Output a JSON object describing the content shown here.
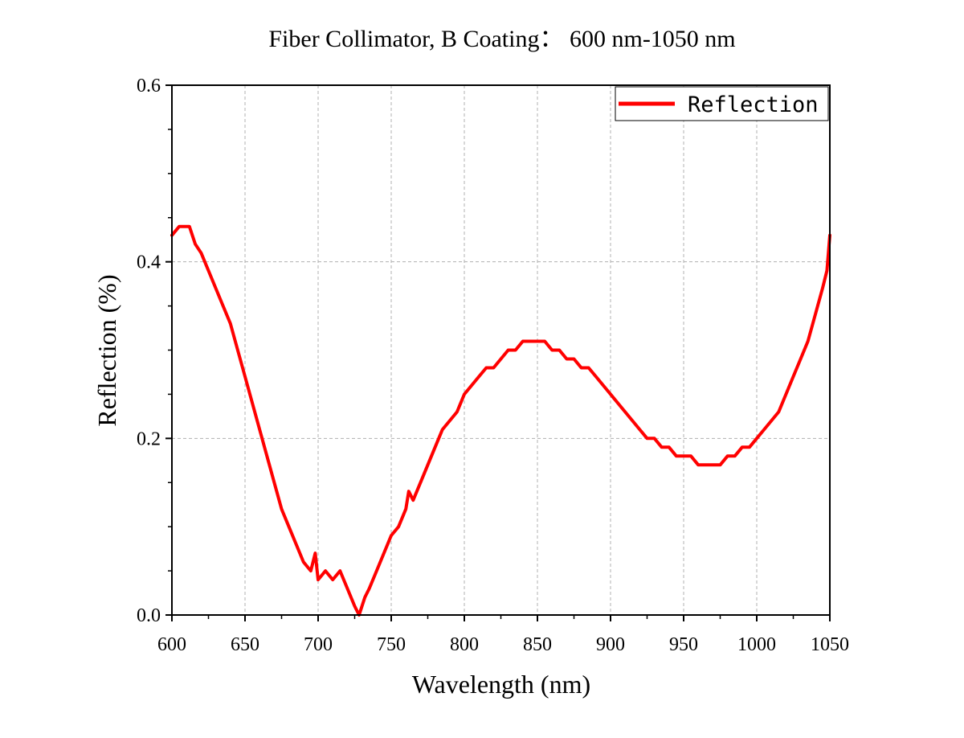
{
  "chart_data": {
    "type": "line",
    "title": "Fiber Collimator, B Coating： 600 nm-1050 nm",
    "xlabel": "Wavelength (nm)",
    "ylabel": "Reflection (%)",
    "xlim": [
      600,
      1050
    ],
    "ylim": [
      0,
      0.6
    ],
    "xticks": [
      "600",
      "650",
      "700",
      "750",
      "800",
      "850",
      "900",
      "950",
      "1000",
      "1050"
    ],
    "yticks": [
      "0.0",
      "0.2",
      "0.4",
      "0.6"
    ],
    "grid": true,
    "legend_position": "top-right",
    "series": [
      {
        "name": "Reflection",
        "color": "#ff0000",
        "x": [
          600,
          605,
          612,
          616,
          620,
          625,
          630,
          635,
          640,
          645,
          650,
          655,
          660,
          665,
          670,
          675,
          680,
          685,
          690,
          695,
          698,
          700,
          705,
          710,
          715,
          720,
          725,
          728,
          732,
          735,
          740,
          745,
          750,
          755,
          760,
          762,
          765,
          770,
          775,
          780,
          785,
          790,
          795,
          800,
          805,
          810,
          815,
          820,
          825,
          830,
          835,
          840,
          845,
          850,
          855,
          860,
          865,
          870,
          875,
          880,
          885,
          890,
          895,
          900,
          905,
          910,
          915,
          920,
          925,
          930,
          935,
          940,
          945,
          950,
          955,
          960,
          965,
          970,
          975,
          980,
          985,
          990,
          995,
          1000,
          1005,
          1010,
          1015,
          1020,
          1025,
          1030,
          1035,
          1040,
          1045,
          1048,
          1050
        ],
        "y": [
          0.43,
          0.44,
          0.44,
          0.42,
          0.41,
          0.39,
          0.37,
          0.35,
          0.33,
          0.3,
          0.27,
          0.24,
          0.21,
          0.18,
          0.15,
          0.12,
          0.1,
          0.08,
          0.06,
          0.05,
          0.07,
          0.04,
          0.05,
          0.04,
          0.05,
          0.03,
          0.01,
          0.0,
          0.02,
          0.03,
          0.05,
          0.07,
          0.09,
          0.1,
          0.12,
          0.14,
          0.13,
          0.15,
          0.17,
          0.19,
          0.21,
          0.22,
          0.23,
          0.25,
          0.26,
          0.27,
          0.28,
          0.28,
          0.29,
          0.3,
          0.3,
          0.31,
          0.31,
          0.31,
          0.31,
          0.3,
          0.3,
          0.29,
          0.29,
          0.28,
          0.28,
          0.27,
          0.26,
          0.25,
          0.24,
          0.23,
          0.22,
          0.21,
          0.2,
          0.2,
          0.19,
          0.19,
          0.18,
          0.18,
          0.18,
          0.17,
          0.17,
          0.17,
          0.17,
          0.18,
          0.18,
          0.19,
          0.19,
          0.2,
          0.21,
          0.22,
          0.23,
          0.25,
          0.27,
          0.29,
          0.31,
          0.34,
          0.37,
          0.39,
          0.43
        ]
      }
    ]
  }
}
